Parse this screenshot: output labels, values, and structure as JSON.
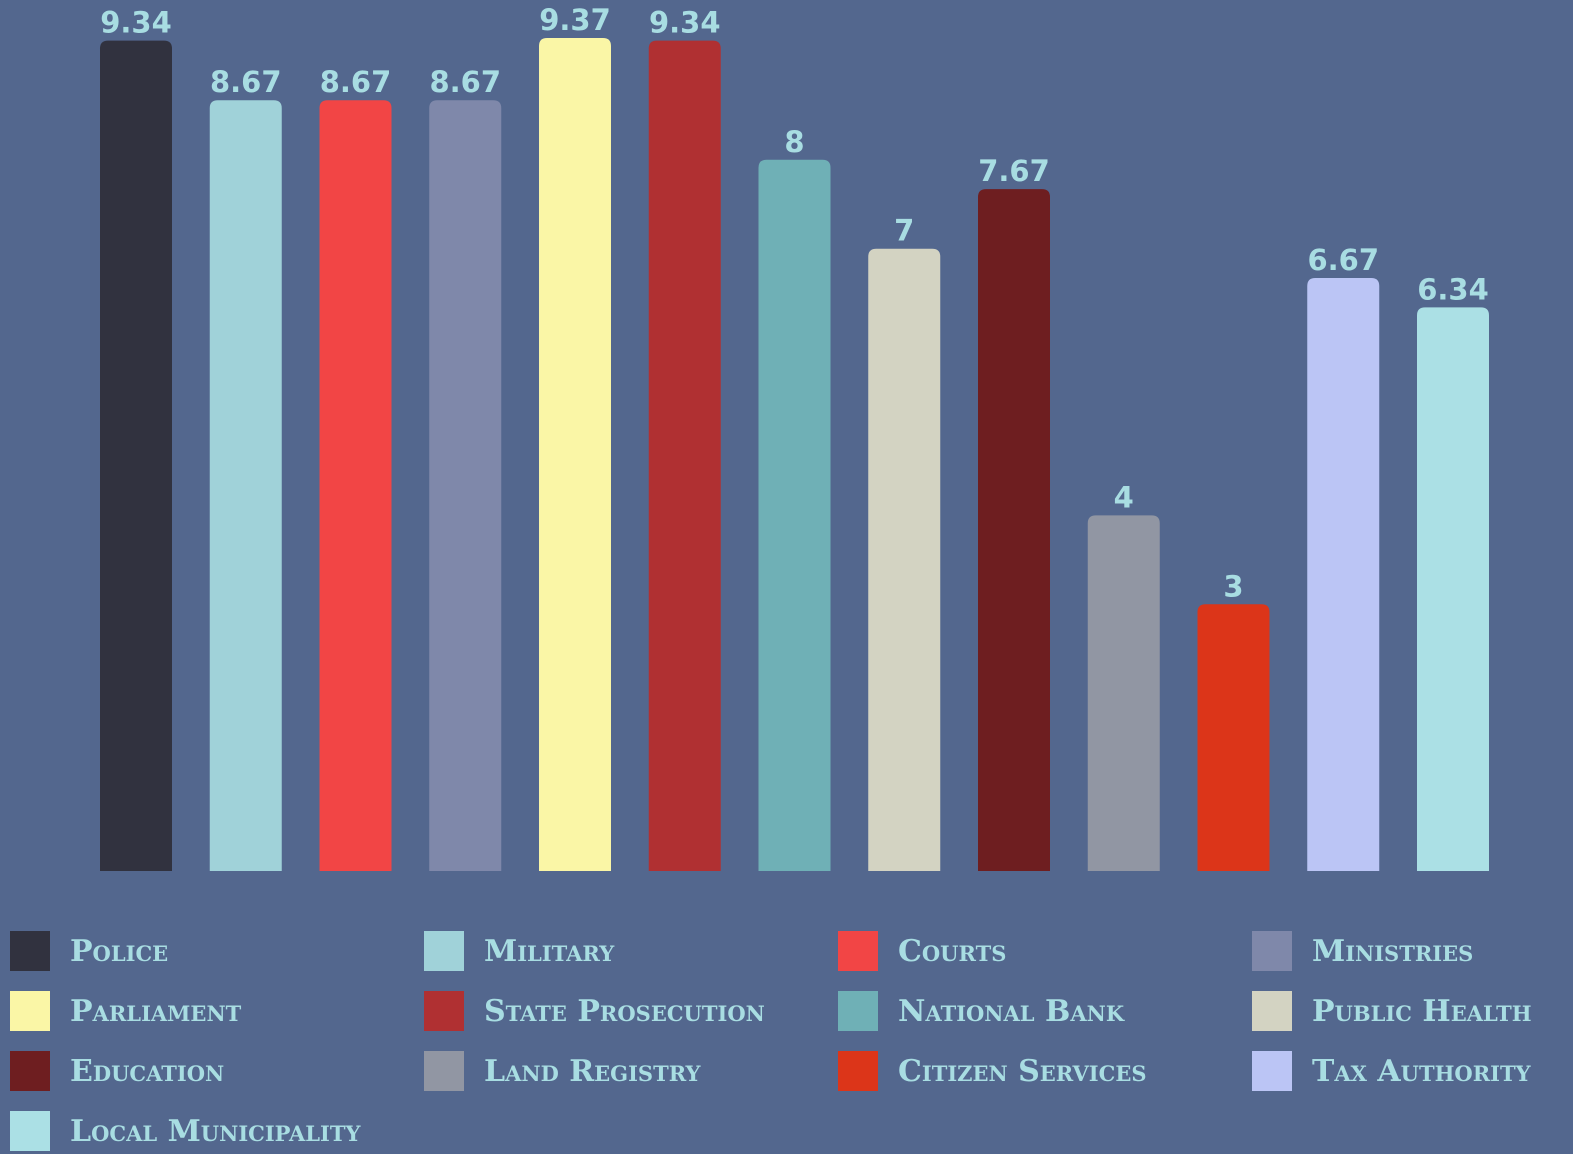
{
  "chart_data": {
    "type": "bar",
    "categories": [
      "Police",
      "Military",
      "Courts",
      "Ministries",
      "Parliament",
      "State Prosecution",
      "National Bank",
      "Public Health",
      "Education",
      "Land Registry",
      "Citizen Services",
      "Tax Authority",
      "Local Municipality"
    ],
    "values": [
      9.34,
      8.67,
      8.67,
      8.67,
      9.37,
      9.34,
      8,
      7,
      7.67,
      4,
      3,
      6.67,
      6.34
    ],
    "colors": [
      "#31323f",
      "#a0d2d9",
      "#f24545",
      "#7f88aa",
      "#faf6a6",
      "#b03032",
      "#6fb0b6",
      "#d3d3c2",
      "#6e1e20",
      "#9196a3",
      "#dc3519",
      "#bbc5f5",
      "#abe0e5"
    ]
  }
}
